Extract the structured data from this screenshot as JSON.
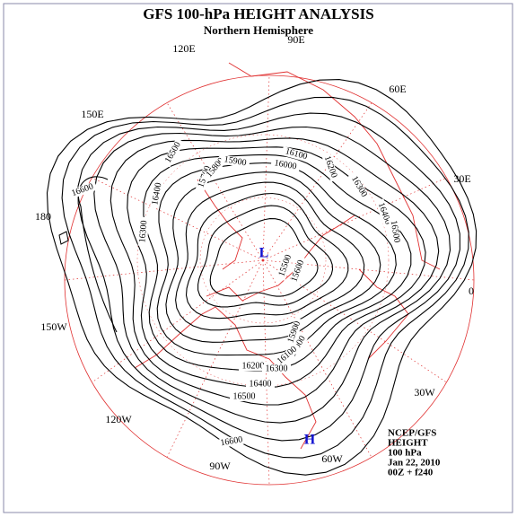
{
  "title": "GFS 100-hPa HEIGHT ANALYSIS",
  "subtitle": "Northern Hemisphere",
  "longitude_labels": [
    "90E",
    "120E",
    "60E",
    "150E",
    "30E",
    "180",
    "0",
    "150W",
    "30W",
    "120W",
    "60W",
    "90W"
  ],
  "contour_labels": [
    "16500",
    "16600",
    "16400",
    "16300",
    "15700",
    "15800",
    "15900",
    "16000",
    "16100",
    "16200",
    "16300",
    "16400",
    "16500",
    "15500",
    "15600",
    "15900",
    "16000",
    "16100",
    "16200",
    "16300",
    "16400",
    "16500",
    "16600"
  ],
  "pressure_centers": [
    "L",
    "H"
  ],
  "info": [
    "NCEP/GFS",
    "HEIGHT",
    "100 hPa",
    "Jan 22, 2010",
    "00Z + f240"
  ]
}
